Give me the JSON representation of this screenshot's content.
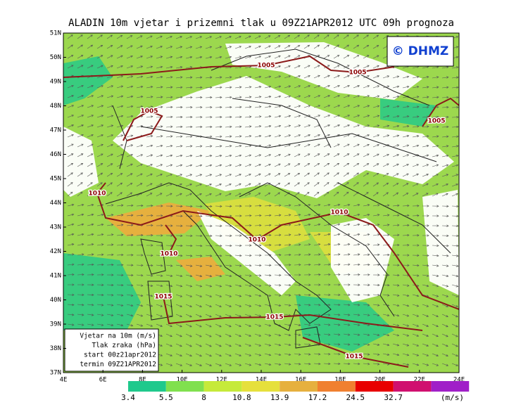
{
  "title": "ALADIN 10m vjetar i prizemni tlak u 09Z21APR2012 UTC 09h prognoza",
  "copyright": "© DHMZ",
  "lat_labels": [
    "51N",
    "50N",
    "49N",
    "48N",
    "47N",
    "46N",
    "45N",
    "44N",
    "43N",
    "42N",
    "41N",
    "40N",
    "39N",
    "38N",
    "37N"
  ],
  "lon_labels": [
    "4E",
    "6E",
    "8E",
    "10E",
    "12E",
    "14E",
    "16E",
    "18E",
    "20E",
    "22E",
    "24E"
  ],
  "isobar_labels": [
    "1005",
    "1005",
    "1005",
    "1005",
    "1010",
    "1010",
    "1010",
    "1010",
    "1015",
    "1015",
    "1015"
  ],
  "info": [
    "Vjetar na 10m (m/s)",
    "Tlak zraka (hPa)",
    "start 00z21apr2012",
    "termin 09Z21APR2012"
  ],
  "colorbar": {
    "values": [
      3.4,
      5.5,
      8,
      10.8,
      13.9,
      17.2,
      24.5,
      32.7
    ],
    "colors": [
      "#1fc98c",
      "#80e04e",
      "#c6ea3a",
      "#e6e03c",
      "#e6b03e",
      "#f08030",
      "#e80000",
      "#d0106f",
      "#a020c8"
    ],
    "unit": "(m/s)"
  }
}
